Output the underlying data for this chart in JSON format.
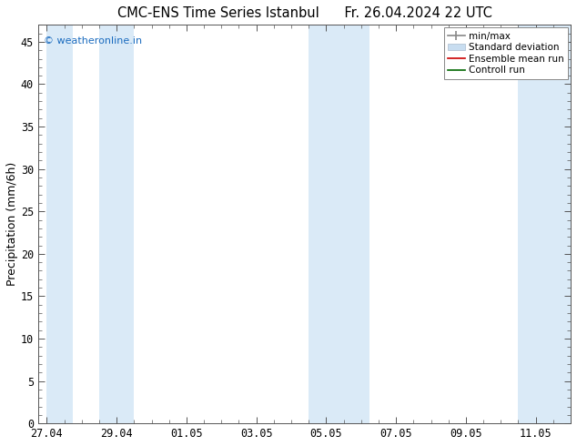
{
  "title_left": "CMC-ENS Time Series Istanbul",
  "title_right": "Fr. 26.04.2024 22 UTC",
  "ylabel": "Precipitation (mm/6h)",
  "yticks": [
    0,
    5,
    10,
    15,
    20,
    25,
    30,
    35,
    40,
    45
  ],
  "ymax": 47,
  "ymin": 0,
  "watermark": "© weatheronline.in",
  "watermark_color": "#1a6bbf",
  "bg_color": "#ffffff",
  "plot_bg_color": "#ffffff",
  "shaded_color": "#daeaf7",
  "font_size_title": 10.5,
  "font_size_labels": 9,
  "font_size_ticks": 8.5,
  "tick_positions": [
    0,
    2,
    4,
    6,
    8,
    10,
    12,
    14
  ],
  "tick_labels": [
    "27.04",
    "29.04",
    "01.05",
    "03.05",
    "05.05",
    "07.05",
    "09.05",
    "11.05"
  ],
  "xlim_min": -0.25,
  "xlim_max": 15.0,
  "shaded_bands": [
    [
      0.0,
      0.75
    ],
    [
      1.5,
      2.5
    ],
    [
      7.5,
      8.5
    ],
    [
      8.5,
      9.25
    ],
    [
      13.5,
      15.0
    ]
  ]
}
